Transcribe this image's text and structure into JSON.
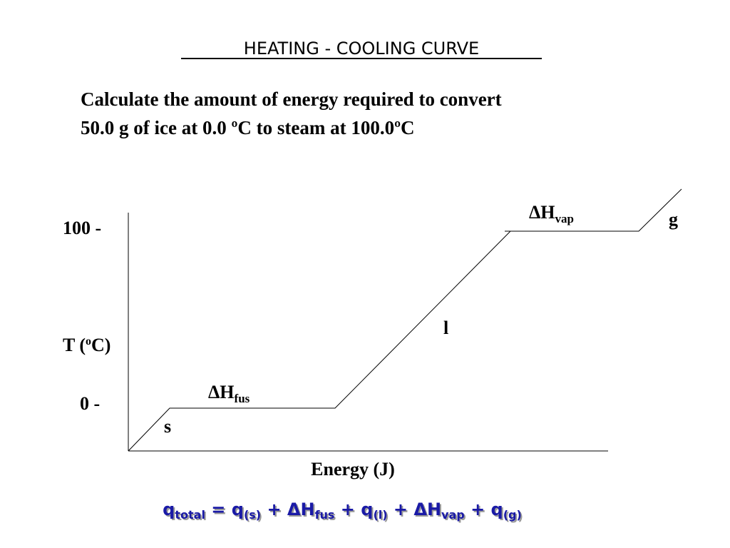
{
  "header": {
    "title": "HEATING - COOLING CURVE"
  },
  "question": {
    "lines": [
      "Calculate the amount of energy required to convert",
      "50.0 g of ice at 0.0 ºC to steam at 100.0ºC"
    ]
  },
  "diagram": {
    "y_labels": {
      "top": "100 -",
      "bottom": "0 -"
    },
    "y_title": {
      "before": "T (",
      "sup": "o",
      "after": "C)"
    },
    "x_title": "Energy (J)",
    "phase_labels": {
      "solid": "s",
      "liquid": "l",
      "gas": "g"
    },
    "fusion": {
      "symbol": "ΔH",
      "sub": "fus"
    },
    "vaporization": {
      "symbol": "ΔH",
      "sub": "vap"
    }
  },
  "equation": {
    "parts": [
      "q",
      "total",
      " = q",
      "(s)",
      " + ΔH",
      "fus",
      " + q",
      "(l)",
      " + ΔH",
      "vap",
      " + q",
      "(g)"
    ]
  }
}
